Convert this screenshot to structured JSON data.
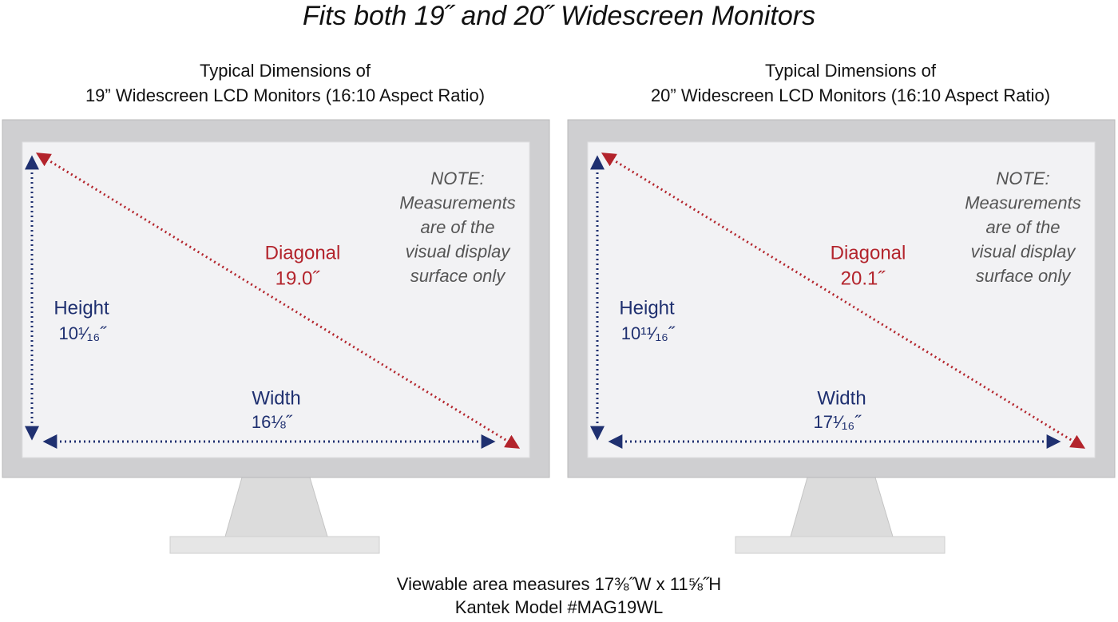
{
  "title": "Fits both 19˝ and 20˝ Widescreen Monitors",
  "monitors": [
    {
      "heading": [
        "Typical Dimensions of",
        "19” Widescreen LCD Monitors (16:10 Aspect Ratio)"
      ],
      "note": [
        "NOTE:",
        "Measurements",
        "are of the",
        "visual display",
        "surface only"
      ],
      "diagonal_label": "Diagonal",
      "diagonal": "19.0˝",
      "height_label": "Height",
      "height": "10¹⁄₁₆˝",
      "width_label": "Width",
      "width": "16⅛˝"
    },
    {
      "heading": [
        "Typical Dimensions of",
        "20” Widescreen LCD Monitors (16:10 Aspect Ratio)"
      ],
      "note": [
        "NOTE:",
        "Measurements",
        "are of the",
        "visual display",
        "surface only"
      ],
      "diagonal_label": "Diagonal",
      "diagonal": "20.1˝",
      "height_label": "Height",
      "height": "10¹¹⁄₁₆˝",
      "width_label": "Width",
      "width": "17¹⁄₁₆˝"
    }
  ],
  "footer": [
    "Viewable area measures 17⅜˝W x 11⅝˝H",
    "Kantek Model #MAG19WL"
  ]
}
